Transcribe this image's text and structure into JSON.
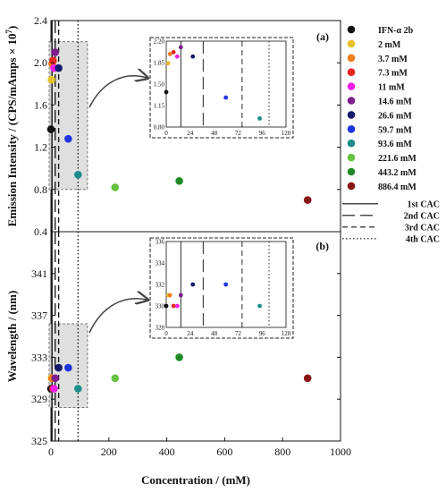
{
  "chart_data": [
    {
      "type": "scatter",
      "panel_label": "(a)",
      "ylabel": "Emission Intensity / (CPS/mAmps ×",
      "ylabel_exponent": "10",
      "ylabel_power": "7",
      "ylabel_close": ")",
      "xlabel": "",
      "xlim": [
        0,
        1000
      ],
      "ylim": [
        0.4,
        2.4
      ],
      "x_ticks": [],
      "y_ticks": [
        2.4,
        2.0,
        1.6,
        1.2,
        0.8,
        0.4
      ],
      "y_tick_labels": [
        "2.4",
        "2.0",
        "1.6",
        "1.2",
        "0.8",
        "0.4"
      ],
      "series": [
        {
          "name": "IFN-α 2b",
          "x": [
            0
          ],
          "y": [
            1.37
          ]
        },
        {
          "name": "2 mM",
          "x": [
            2
          ],
          "y": [
            1.84
          ]
        },
        {
          "name": "3.7 mM",
          "x": [
            3.7
          ],
          "y": [
            1.99
          ]
        },
        {
          "name": "7.3 mM",
          "x": [
            7.3
          ],
          "y": [
            2.02
          ]
        },
        {
          "name": "11 mM",
          "x": [
            11
          ],
          "y": [
            1.95
          ]
        },
        {
          "name": "14.6 mM",
          "x": [
            14.6
          ],
          "y": [
            2.1
          ]
        },
        {
          "name": "26.6 mM",
          "x": [
            26.6
          ],
          "y": [
            1.95
          ]
        },
        {
          "name": "59.7 mM",
          "x": [
            59.7
          ],
          "y": [
            1.28
          ]
        },
        {
          "name": "93.6 mM",
          "x": [
            93.6
          ],
          "y": [
            0.94
          ]
        },
        {
          "name": "221.6 mM",
          "x": [
            221.6
          ],
          "y": [
            0.82
          ]
        },
        {
          "name": "443.2 mM",
          "x": [
            443.2
          ],
          "y": [
            0.88
          ]
        },
        {
          "name": "886.4 mM",
          "x": [
            886.4
          ],
          "y": [
            0.7
          ]
        }
      ],
      "cac_lines": [
        3.7,
        14.6,
        26.6,
        93.6
      ],
      "inset": {
        "xlim": [
          0,
          120
        ],
        "ylim": [
          0.8,
          2.2
        ],
        "x_ticks": [
          0,
          24,
          48,
          72,
          96,
          120
        ],
        "y_ticks": [
          2.2,
          1.85,
          1.5,
          1.15,
          0.8
        ],
        "y_tick_labels": [
          "2.20",
          "1.85",
          "1.50",
          "1.15",
          "0.80"
        ],
        "cac_lines": [
          14.6,
          37,
          76,
          103
        ]
      }
    },
    {
      "type": "scatter",
      "panel_label": "(b)",
      "ylabel": "Wavelength / (nm)",
      "xlabel": "Concentration / (mM)",
      "xlim": [
        0,
        1000
      ],
      "ylim": [
        325,
        345
      ],
      "x_ticks": [
        0,
        200,
        400,
        600,
        800,
        1000
      ],
      "x_tick_labels": [
        "0",
        "200",
        "400",
        "600",
        "800",
        "1000"
      ],
      "y_ticks": [
        341,
        337,
        333,
        329,
        325
      ],
      "y_tick_labels": [
        "341",
        "337",
        "333",
        "329",
        "325"
      ],
      "series": [
        {
          "name": "IFN-α 2b",
          "x": [
            0
          ],
          "y": [
            330
          ]
        },
        {
          "name": "2 mM",
          "x": [
            2
          ],
          "y": [
            331
          ]
        },
        {
          "name": "3.7 mM",
          "x": [
            3.7
          ],
          "y": [
            331
          ]
        },
        {
          "name": "7.3 mM",
          "x": [
            7.3
          ],
          "y": [
            330
          ]
        },
        {
          "name": "11 mM",
          "x": [
            11
          ],
          "y": [
            330
          ]
        },
        {
          "name": "14.6 mM",
          "x": [
            14.6
          ],
          "y": [
            331
          ]
        },
        {
          "name": "26.6 mM",
          "x": [
            26.6
          ],
          "y": [
            332
          ]
        },
        {
          "name": "59.7 mM",
          "x": [
            59.7
          ],
          "y": [
            332
          ]
        },
        {
          "name": "93.6 mM",
          "x": [
            93.6
          ],
          "y": [
            330
          ]
        },
        {
          "name": "221.6 mM",
          "x": [
            221.6
          ],
          "y": [
            331
          ]
        },
        {
          "name": "443.2 mM",
          "x": [
            443.2
          ],
          "y": [
            333
          ]
        },
        {
          "name": "886.4 mM",
          "x": [
            886.4
          ],
          "y": [
            331
          ]
        }
      ],
      "cac_lines": [
        3.7,
        14.6,
        26.6,
        93.6
      ],
      "inset": {
        "xlim": [
          0,
          120
        ],
        "ylim": [
          328,
          336
        ],
        "x_ticks": [
          0,
          24,
          48,
          72,
          96,
          120
        ],
        "y_ticks": [
          336,
          334,
          332,
          330,
          328
        ],
        "y_tick_labels": [
          "336",
          "334",
          "332",
          "330",
          "328"
        ],
        "cac_lines": [
          14.6,
          37,
          76,
          103
        ]
      }
    }
  ],
  "legend": {
    "placement": "right",
    "items": [
      {
        "label": "IFN-α 2b",
        "color": "#111111"
      },
      {
        "label": "2 mM",
        "color": "#e6c02a"
      },
      {
        "label": "3.7 mM",
        "color": "#ee7e1c"
      },
      {
        "label": "7.3 mM",
        "color": "#e8261e"
      },
      {
        "label": "11 mM",
        "color": "#f01ee6"
      },
      {
        "label": "14.6 mM",
        "color": "#7d1e8c"
      },
      {
        "label": "26.6 mM",
        "color": "#151a6b"
      },
      {
        "label": "59.7 mM",
        "color": "#1f35e0"
      },
      {
        "label": "93.6 mM",
        "color": "#1a8c8c"
      },
      {
        "label": "221.6 mM",
        "color": "#66c23f"
      },
      {
        "label": "443.2 mM",
        "color": "#1e8a26"
      },
      {
        "label": "886.4 mM",
        "color": "#8a1414"
      }
    ],
    "line_items": [
      {
        "label": "1st CAC",
        "dash": "solid"
      },
      {
        "label": "2nd CAC",
        "dash": "long"
      },
      {
        "label": "3rd CAC",
        "dash": "short"
      },
      {
        "label": "4th CAC",
        "dash": "dot"
      }
    ]
  },
  "colors": {
    "axis": "#111111",
    "highlight_box": "#d9d9d9"
  }
}
